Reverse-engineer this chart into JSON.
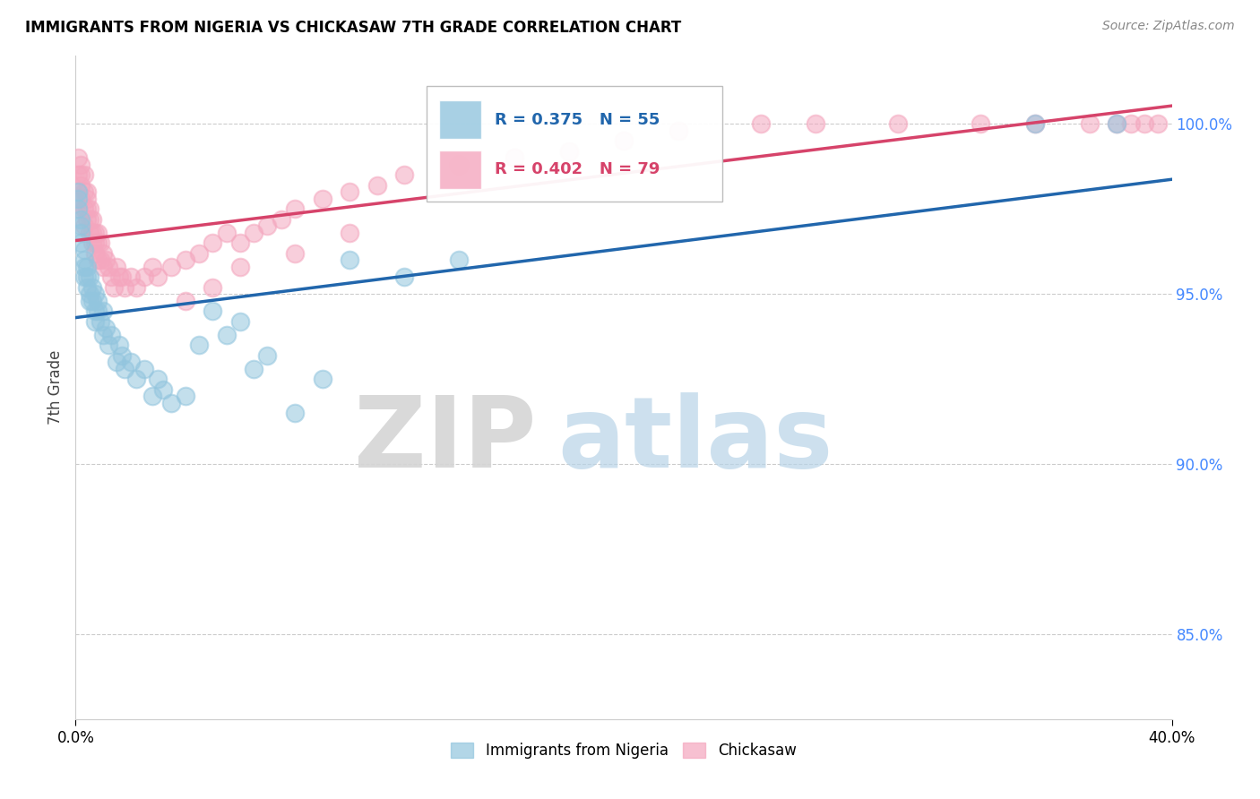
{
  "title": "IMMIGRANTS FROM NIGERIA VS CHICKASAW 7TH GRADE CORRELATION CHART",
  "source": "Source: ZipAtlas.com",
  "ylabel": "7th Grade",
  "yaxis_labels": [
    "100.0%",
    "95.0%",
    "90.0%",
    "85.0%"
  ],
  "yaxis_values": [
    1.0,
    0.95,
    0.9,
    0.85
  ],
  "xlim": [
    0.0,
    0.4
  ],
  "ylim": [
    0.825,
    1.02
  ],
  "xtick_positions": [
    0.0,
    0.4
  ],
  "xtick_labels": [
    "0.0%",
    "40.0%"
  ],
  "legend_blue_r": "R = 0.375",
  "legend_blue_n": "N = 55",
  "legend_pink_r": "R = 0.402",
  "legend_pink_n": "N = 79",
  "legend_blue_label": "Immigrants from Nigeria",
  "legend_pink_label": "Chickasaw",
  "blue_color": "#92C5DE",
  "pink_color": "#F4A6BE",
  "blue_line_color": "#2166AC",
  "pink_line_color": "#D6436A",
  "watermark_zip": "ZIP",
  "watermark_atlas": "atlas",
  "blue_scatter_x": [
    0.001,
    0.001,
    0.001,
    0.002,
    0.002,
    0.002,
    0.002,
    0.003,
    0.003,
    0.003,
    0.003,
    0.004,
    0.004,
    0.004,
    0.005,
    0.005,
    0.005,
    0.006,
    0.006,
    0.007,
    0.007,
    0.007,
    0.008,
    0.008,
    0.009,
    0.01,
    0.01,
    0.011,
    0.012,
    0.013,
    0.015,
    0.016,
    0.017,
    0.018,
    0.02,
    0.022,
    0.025,
    0.028,
    0.03,
    0.032,
    0.035,
    0.04,
    0.045,
    0.05,
    0.055,
    0.06,
    0.065,
    0.07,
    0.08,
    0.09,
    0.1,
    0.12,
    0.14,
    0.35,
    0.38
  ],
  "blue_scatter_y": [
    0.975,
    0.978,
    0.98,
    0.97,
    0.972,
    0.968,
    0.965,
    0.96,
    0.963,
    0.958,
    0.955,
    0.958,
    0.955,
    0.952,
    0.95,
    0.955,
    0.948,
    0.952,
    0.948,
    0.945,
    0.95,
    0.942,
    0.948,
    0.945,
    0.942,
    0.938,
    0.945,
    0.94,
    0.935,
    0.938,
    0.93,
    0.935,
    0.932,
    0.928,
    0.93,
    0.925,
    0.928,
    0.92,
    0.925,
    0.922,
    0.918,
    0.92,
    0.935,
    0.945,
    0.938,
    0.942,
    0.928,
    0.932,
    0.915,
    0.925,
    0.96,
    0.955,
    0.96,
    1.0,
    1.0
  ],
  "pink_scatter_x": [
    0.001,
    0.001,
    0.001,
    0.001,
    0.002,
    0.002,
    0.002,
    0.002,
    0.003,
    0.003,
    0.003,
    0.003,
    0.004,
    0.004,
    0.004,
    0.004,
    0.005,
    0.005,
    0.005,
    0.006,
    0.006,
    0.006,
    0.007,
    0.007,
    0.007,
    0.008,
    0.008,
    0.008,
    0.009,
    0.009,
    0.01,
    0.01,
    0.011,
    0.012,
    0.013,
    0.014,
    0.015,
    0.016,
    0.017,
    0.018,
    0.02,
    0.022,
    0.025,
    0.028,
    0.03,
    0.035,
    0.04,
    0.045,
    0.05,
    0.055,
    0.06,
    0.065,
    0.07,
    0.075,
    0.08,
    0.09,
    0.1,
    0.11,
    0.12,
    0.14,
    0.16,
    0.18,
    0.2,
    0.22,
    0.25,
    0.27,
    0.3,
    0.33,
    0.35,
    0.37,
    0.38,
    0.385,
    0.39,
    0.395,
    0.04,
    0.05,
    0.06,
    0.08,
    0.1
  ],
  "pink_scatter_y": [
    0.99,
    0.985,
    0.98,
    0.975,
    0.988,
    0.985,
    0.982,
    0.978,
    0.985,
    0.98,
    0.975,
    0.97,
    0.98,
    0.978,
    0.975,
    0.972,
    0.975,
    0.972,
    0.968,
    0.972,
    0.968,
    0.965,
    0.968,
    0.965,
    0.962,
    0.968,
    0.965,
    0.96,
    0.965,
    0.96,
    0.962,
    0.958,
    0.96,
    0.958,
    0.955,
    0.952,
    0.958,
    0.955,
    0.955,
    0.952,
    0.955,
    0.952,
    0.955,
    0.958,
    0.955,
    0.958,
    0.96,
    0.962,
    0.965,
    0.968,
    0.965,
    0.968,
    0.97,
    0.972,
    0.975,
    0.978,
    0.98,
    0.982,
    0.985,
    0.988,
    0.99,
    0.992,
    0.995,
    0.998,
    1.0,
    1.0,
    1.0,
    1.0,
    1.0,
    1.0,
    1.0,
    1.0,
    1.0,
    1.0,
    0.948,
    0.952,
    0.958,
    0.962,
    0.968
  ]
}
